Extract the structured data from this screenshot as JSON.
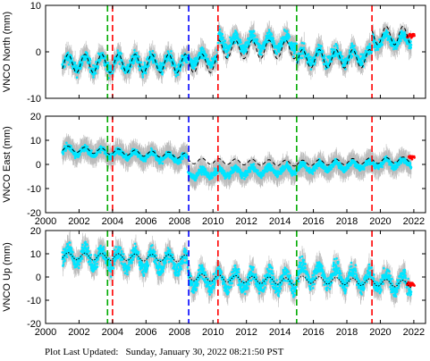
{
  "chart_data": [
    {
      "type": "scatter",
      "ylabel": "VNCO North (mm)",
      "xlim": [
        2000,
        2022.7
      ],
      "ylim": [
        -10,
        10
      ],
      "xticks": [
        2000,
        2002,
        2004,
        2006,
        2008,
        2010,
        2012,
        2014,
        2016,
        2018,
        2020,
        2022
      ],
      "yticks": [
        -10,
        0,
        10
      ],
      "x_tick_labels_shown": false,
      "series": {
        "observations": {
          "color": "#00e5ff",
          "x_start": 2001.0,
          "x_end": 2021.85,
          "segments": [
            {
              "x0": 2001.0,
              "x1": 2008.5,
              "level": -2.5,
              "amp": 2.5
            },
            {
              "x0": 2008.5,
              "x1": 2010.3,
              "level": -1.5,
              "amp": 2.0
            },
            {
              "x0": 2010.3,
              "x1": 2015.0,
              "level": 2.0,
              "amp": 2.5
            },
            {
              "x0": 2015.0,
              "x1": 2019.5,
              "level": -1.0,
              "amp": 2.5
            },
            {
              "x0": 2019.5,
              "x1": 2021.85,
              "level": 2.5,
              "amp": 2.0
            }
          ]
        },
        "model": {
          "color": "#000000",
          "style": "dashed",
          "amp": 2.0,
          "segments": [
            {
              "x0": 2001.0,
              "x1": 2010.3,
              "level": -2.5
            },
            {
              "x0": 2010.3,
              "x1": 2015.0,
              "level": 0.5
            },
            {
              "x0": 2015.0,
              "x1": 2019.5,
              "level": -1.5
            },
            {
              "x0": 2019.5,
              "x1": 2021.85,
              "level": 3.5
            }
          ]
        },
        "recent": {
          "color": "#ff0000",
          "x_start": 2021.6,
          "x_end": 2022.05,
          "level": 3.5
        }
      },
      "vertical_lines": [
        {
          "x": 2003.7,
          "color": "#00aa00"
        },
        {
          "x": 2004.0,
          "color": "#ff0000"
        },
        {
          "x": 2008.55,
          "color": "#0000ff"
        },
        {
          "x": 2010.3,
          "color": "#ff0000"
        },
        {
          "x": 2015.0,
          "color": "#00aa00"
        },
        {
          "x": 2019.5,
          "color": "#ff0000"
        }
      ]
    },
    {
      "type": "scatter",
      "ylabel": "VNCO East (mm)",
      "xlim": [
        2000,
        2022.7
      ],
      "ylim": [
        -20,
        20
      ],
      "xticks": [
        2000,
        2002,
        2004,
        2006,
        2008,
        2010,
        2012,
        2014,
        2016,
        2018,
        2020,
        2022
      ],
      "yticks": [
        -20,
        -10,
        0,
        10,
        20
      ],
      "x_tick_labels_shown": true,
      "series": {
        "observations": {
          "color": "#00e5ff",
          "x_start": 2001.0,
          "x_end": 2021.85,
          "segments": [
            {
              "x0": 2001.0,
              "x1": 2008.5,
              "level_start": 6.0,
              "level_end": 2.5,
              "amp": 2.5
            },
            {
              "x0": 2008.5,
              "x1": 2015.0,
              "level_start": -4.0,
              "level_end": -2.0,
              "amp": 2.5
            },
            {
              "x0": 2015.0,
              "x1": 2021.85,
              "level_start": -1.5,
              "level_end": 1.0,
              "amp": 2.5
            }
          ]
        },
        "model": {
          "color": "#000000",
          "style": "dashed",
          "amp": 1.2,
          "segments": [
            {
              "x0": 2001.0,
              "x1": 2008.5,
              "level_start": 6.5,
              "level_end": 3.5
            },
            {
              "x0": 2008.5,
              "x1": 2015.0,
              "level_start": 1.5,
              "level_end": 0.5
            },
            {
              "x0": 2015.0,
              "x1": 2021.85,
              "level_start": 0.5,
              "level_end": 2.0
            }
          ]
        },
        "recent": {
          "color": "#ff0000",
          "x_start": 2021.7,
          "x_end": 2022.05,
          "level": 3.0
        }
      },
      "vertical_lines": [
        {
          "x": 2003.7,
          "color": "#00aa00"
        },
        {
          "x": 2004.0,
          "color": "#ff0000"
        },
        {
          "x": 2008.55,
          "color": "#0000ff"
        },
        {
          "x": 2010.3,
          "color": "#ff0000"
        },
        {
          "x": 2015.0,
          "color": "#00aa00"
        },
        {
          "x": 2019.5,
          "color": "#ff0000"
        }
      ]
    },
    {
      "type": "scatter",
      "ylabel": "VNCO Up (mm)",
      "xlim": [
        2000,
        2022.7
      ],
      "ylim": [
        -20,
        20
      ],
      "xticks": [
        2000,
        2002,
        2004,
        2006,
        2008,
        2010,
        2012,
        2014,
        2016,
        2018,
        2020,
        2022
      ],
      "yticks": [
        -20,
        -10,
        0,
        10,
        20
      ],
      "x_tick_labels_shown": true,
      "series": {
        "observations": {
          "color": "#00e5ff",
          "x_start": 2001.0,
          "x_end": 2021.85,
          "segments": [
            {
              "x0": 2001.0,
              "x1": 2008.5,
              "level_start": 9.0,
              "level_end": 6.0,
              "amp": 6.0
            },
            {
              "x0": 2008.5,
              "x1": 2015.0,
              "level_start": -1.0,
              "level_end": -2.0,
              "amp": 6.0
            },
            {
              "x0": 2015.0,
              "x1": 2021.85,
              "level_start": 2.0,
              "level_end": -3.0,
              "amp": 6.0
            }
          ]
        },
        "model": {
          "color": "#000000",
          "style": "dotted",
          "amp": 1.5,
          "segments": [
            {
              "x0": 2001.0,
              "x1": 2008.5,
              "level_start": 9.0,
              "level_end": 8.0
            },
            {
              "x0": 2008.5,
              "x1": 2015.0,
              "level_start": 0.0,
              "level_end": -2.0
            },
            {
              "x0": 2015.0,
              "x1": 2021.85,
              "level_start": -1.0,
              "level_end": -3.0
            }
          ]
        },
        "recent": {
          "color": "#ff0000",
          "x_start": 2021.6,
          "x_end": 2022.05,
          "level": -3.0
        }
      },
      "vertical_lines": [
        {
          "x": 2003.7,
          "color": "#00aa00"
        },
        {
          "x": 2004.0,
          "color": "#ff0000"
        },
        {
          "x": 2008.55,
          "color": "#0000ff"
        },
        {
          "x": 2010.3,
          "color": "#ff0000"
        },
        {
          "x": 2015.0,
          "color": "#00aa00"
        },
        {
          "x": 2019.5,
          "color": "#ff0000"
        }
      ]
    }
  ],
  "footer": {
    "label": "Plot Last Updated:",
    "value": "Sunday, January 30, 2022 08:21:50 PST"
  },
  "colors": {
    "error_bars": "#bbbbbb"
  }
}
